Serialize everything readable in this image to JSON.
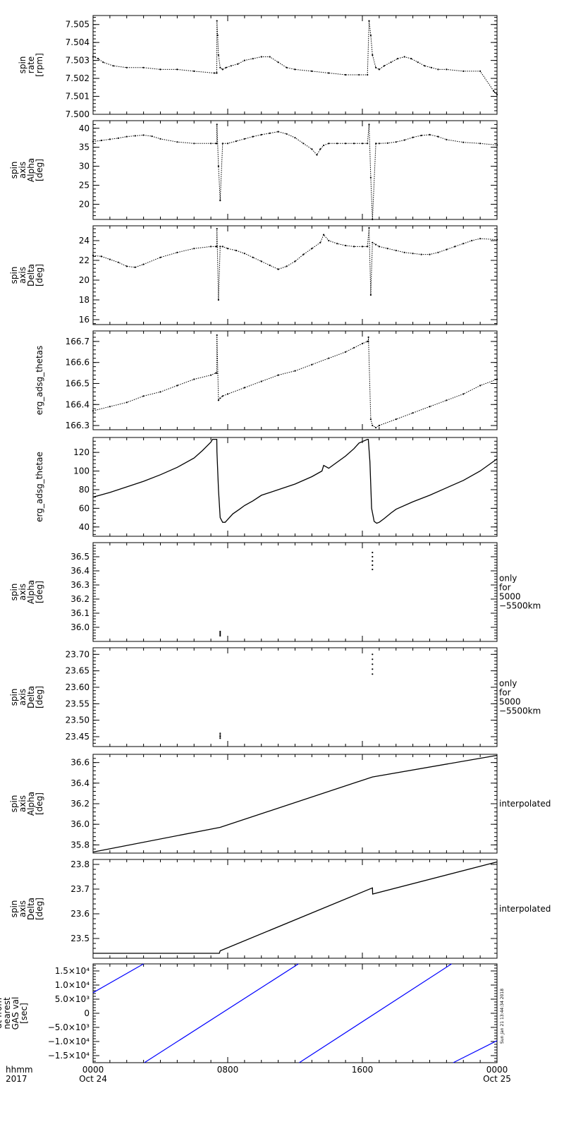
{
  "time_axis": {
    "row1": [
      "0000",
      "0800",
      "1600",
      "0000"
    ],
    "row2": [
      "Oct 24",
      "",
      "",
      "Oct 25"
    ],
    "label_line1": "hhmm",
    "label_line2": "2017",
    "range_hours": [
      0,
      24
    ]
  },
  "stamp": "Sun Jan 21 13:44:34 2018",
  "chart_data": [
    {
      "type": "scatter",
      "ylabel": [
        "spin",
        "rate",
        "[rpm]"
      ],
      "ylim": [
        7.5,
        7.5055
      ],
      "yticks": [
        "7.500",
        "7.501",
        "7.502",
        "7.503",
        "7.504",
        "7.505"
      ],
      "ytick_values": [
        7.5,
        7.501,
        7.502,
        7.503,
        7.504,
        7.505
      ],
      "side_note": [],
      "series": [
        {
          "color": "#000000",
          "x": [
            0,
            0.3,
            0.6,
            1.2,
            2,
            3,
            4,
            5,
            6,
            7.2,
            7.35,
            7.36,
            7.4,
            7.45,
            7.55,
            7.7,
            7.9,
            8.2,
            8.6,
            9,
            9.5,
            10,
            10.5,
            11,
            11.5,
            12,
            13,
            14,
            15,
            15.8,
            16.3,
            16.4,
            16.5,
            16.6,
            16.8,
            17,
            17.3,
            17.7,
            18.1,
            18.5,
            18.9,
            19.3,
            19.7,
            20.1,
            20.5,
            21,
            22,
            23,
            23.8,
            24
          ],
          "y": [
            7.5032,
            7.5031,
            7.5029,
            7.5027,
            7.5026,
            7.5026,
            7.5025,
            7.5025,
            7.5024,
            7.5023,
            7.5023,
            7.5052,
            7.5044,
            7.5033,
            7.5026,
            7.5025,
            7.5026,
            7.5027,
            7.5028,
            7.503,
            7.5031,
            7.5032,
            7.5032,
            7.5029,
            7.5026,
            7.5025,
            7.5024,
            7.5023,
            7.5022,
            7.5022,
            7.5022,
            7.5052,
            7.5044,
            7.5033,
            7.5026,
            7.5025,
            7.5027,
            7.5029,
            7.5031,
            7.5032,
            7.5031,
            7.5029,
            7.5027,
            7.5026,
            7.5025,
            7.5025,
            7.5024,
            7.5024,
            7.5013,
            7.5011
          ]
        }
      ]
    },
    {
      "type": "scatter",
      "ylabel": [
        "spin",
        "axis",
        "Alpha",
        "[deg]"
      ],
      "ylim": [
        16,
        42
      ],
      "yticks": [
        "20",
        "25",
        "30",
        "35",
        "40"
      ],
      "ytick_values": [
        20,
        25,
        30,
        35,
        40
      ],
      "side_note": [],
      "series": [
        {
          "color": "#000000",
          "x": [
            0,
            0.5,
            1,
            1.5,
            2,
            2.5,
            3,
            3.5,
            4,
            5,
            6,
            7,
            7.3,
            7.35,
            7.36,
            7.45,
            7.55,
            7.7,
            8,
            8.5,
            9,
            9.5,
            10,
            10.5,
            11,
            11.5,
            12,
            12.5,
            13,
            13.3,
            13.5,
            13.7,
            14,
            14.5,
            15,
            15.5,
            16,
            16.3,
            16.4,
            16.5,
            16.6,
            16.8,
            17,
            17.5,
            18,
            18.5,
            19,
            19.5,
            20,
            20.5,
            21,
            22,
            23,
            24
          ],
          "y": [
            36.5,
            36.8,
            37.1,
            37.4,
            37.8,
            38,
            38.2,
            37.9,
            37.2,
            36.4,
            36,
            36,
            36,
            36,
            41,
            30,
            21,
            36,
            36,
            36.6,
            37.2,
            37.8,
            38.3,
            38.7,
            39.1,
            38.5,
            37.5,
            36,
            34.5,
            33,
            34.5,
            35.5,
            36,
            36,
            36,
            36,
            36,
            36,
            41,
            27,
            16,
            36,
            36,
            36.1,
            36.4,
            36.9,
            37.6,
            38.1,
            38.3,
            37.8,
            37,
            36.3,
            36,
            35.6
          ]
        }
      ]
    },
    {
      "type": "scatter",
      "ylabel": [
        "spin",
        "axis",
        "Delta",
        "[deg]"
      ],
      "ylim": [
        15.5,
        25.5
      ],
      "yticks": [
        "16",
        "18",
        "20",
        "22",
        "24"
      ],
      "ytick_values": [
        16,
        18,
        20,
        22,
        24
      ],
      "side_note": [],
      "series": [
        {
          "color": "#000000",
          "x": [
            0,
            0.5,
            1,
            1.5,
            2,
            2.5,
            3,
            4,
            5,
            6,
            7,
            7.3,
            7.35,
            7.36,
            7.45,
            7.55,
            7.7,
            8,
            8.5,
            9,
            9.5,
            10,
            10.5,
            11,
            11.5,
            12,
            12.5,
            13,
            13.5,
            13.7,
            14,
            14.5,
            15,
            15.5,
            16,
            16.3,
            16.4,
            16.5,
            16.6,
            16.8,
            17,
            17.5,
            18,
            18.5,
            19,
            19.5,
            20,
            20.5,
            21,
            21.5,
            22,
            22.5,
            23,
            24
          ],
          "y": [
            22.5,
            22.4,
            22.1,
            21.8,
            21.4,
            21.3,
            21.6,
            22.3,
            22.8,
            23.2,
            23.4,
            23.4,
            23.4,
            25.2,
            18,
            23.4,
            23.4,
            23.2,
            23,
            22.7,
            22.3,
            21.9,
            21.5,
            21.1,
            21.4,
            21.9,
            22.6,
            23.2,
            23.8,
            24.6,
            24,
            23.7,
            23.5,
            23.4,
            23.4,
            23.4,
            25.3,
            18.5,
            23.8,
            23.6,
            23.4,
            23.2,
            23,
            22.8,
            22.7,
            22.6,
            22.6,
            22.8,
            23.1,
            23.4,
            23.7,
            24,
            24.2,
            24.1
          ]
        }
      ]
    },
    {
      "type": "scatter",
      "ylabel": [
        "erg_adsg_thetas"
      ],
      "ylim": [
        166.28,
        166.75
      ],
      "yticks": [
        "166.3",
        "166.4",
        "166.5",
        "166.6",
        "166.7"
      ],
      "ytick_values": [
        166.3,
        166.4,
        166.5,
        166.6,
        166.7
      ],
      "side_note": [],
      "series": [
        {
          "color": "#000000",
          "x": [
            0,
            1,
            2,
            3,
            4,
            5,
            6,
            7,
            7.3,
            7.35,
            7.36,
            7.45,
            7.55,
            7.7,
            8,
            9,
            10,
            11,
            12,
            13,
            14,
            15,
            15.5,
            16,
            16.3,
            16.35,
            16.36,
            16.5,
            16.6,
            16.8,
            17,
            18,
            19,
            20,
            21,
            22,
            23,
            24
          ],
          "y": [
            166.37,
            166.39,
            166.41,
            166.44,
            166.46,
            166.49,
            166.52,
            166.54,
            166.55,
            166.55,
            166.73,
            166.42,
            166.43,
            166.44,
            166.45,
            166.48,
            166.51,
            166.54,
            166.56,
            166.59,
            166.62,
            166.65,
            166.67,
            166.69,
            166.7,
            166.7,
            166.72,
            166.33,
            166.3,
            166.29,
            166.3,
            166.33,
            166.36,
            166.39,
            166.42,
            166.45,
            166.49,
            166.52
          ]
        }
      ]
    },
    {
      "type": "line",
      "ylabel": [
        "erg_adsg_thetae"
      ],
      "ylim": [
        30,
        136
      ],
      "yticks": [
        "40",
        "60",
        "80",
        "100",
        "120"
      ],
      "ytick_values": [
        40,
        60,
        80,
        100,
        120
      ],
      "side_note": [],
      "series": [
        {
          "color": "#000000",
          "x": [
            0,
            1,
            2,
            3,
            4,
            5,
            6,
            6.5,
            7,
            7.1,
            7.35,
            7.36,
            7.45,
            7.55,
            7.7,
            7.85,
            8,
            8.3,
            8.7,
            9,
            9.5,
            10,
            11,
            12,
            13,
            13.6,
            13.7,
            14,
            15,
            15.5,
            15.8,
            16.3,
            16.35,
            16.45,
            16.55,
            16.7,
            16.85,
            17,
            17.3,
            17.7,
            18,
            19,
            20,
            21,
            22,
            23,
            24
          ],
          "y": [
            72,
            77,
            83,
            89,
            96,
            104,
            114,
            122,
            131,
            134,
            134,
            121,
            80,
            50,
            45,
            45,
            48,
            54,
            59,
            63,
            68,
            74,
            80,
            86,
            94,
            100,
            106,
            103,
            116,
            124,
            130,
            134,
            134,
            110,
            60,
            46,
            44,
            45,
            49,
            55,
            59,
            67,
            74,
            82,
            90,
            100,
            113
          ]
        }
      ]
    },
    {
      "type": "scatter",
      "ylabel": [
        "spin",
        "axis",
        "Alpha",
        "[deg]"
      ],
      "ylim": [
        35.9,
        36.6
      ],
      "yticks": [
        "36.0",
        "36.1",
        "36.2",
        "36.3",
        "36.4",
        "36.5"
      ],
      "ytick_values": [
        36.0,
        36.1,
        36.2,
        36.3,
        36.4,
        36.5
      ],
      "side_note": [
        "only",
        "for",
        "5000",
        "−5500km"
      ],
      "series": [
        {
          "color": "#000000",
          "x": [
            7.55,
            7.55,
            7.55,
            7.55,
            16.6,
            16.6,
            16.6,
            16.6,
            16.6
          ],
          "y": [
            35.94,
            35.95,
            35.96,
            35.97,
            36.41,
            36.44,
            36.47,
            36.5,
            36.53
          ]
        }
      ]
    },
    {
      "type": "scatter",
      "ylabel": [
        "spin",
        "axis",
        "Delta",
        "[deg]"
      ],
      "ylim": [
        23.42,
        23.72
      ],
      "yticks": [
        "23.45",
        "23.50",
        "23.55",
        "23.60",
        "23.65",
        "23.70"
      ],
      "ytick_values": [
        23.45,
        23.5,
        23.55,
        23.6,
        23.65,
        23.7
      ],
      "side_note": [
        "only",
        "for",
        "5000",
        "−5500km"
      ],
      "series": [
        {
          "color": "#000000",
          "x": [
            7.55,
            7.55,
            7.55,
            7.55,
            16.6,
            16.6,
            16.6,
            16.6,
            16.6
          ],
          "y": [
            23.445,
            23.45,
            23.455,
            23.46,
            23.64,
            23.655,
            23.67,
            23.685,
            23.7
          ]
        }
      ]
    },
    {
      "type": "line",
      "ylabel": [
        "spin",
        "axis",
        "Alpha",
        "[deg]"
      ],
      "ylim": [
        35.72,
        36.68
      ],
      "yticks": [
        "35.8",
        "36.0",
        "36.2",
        "36.4",
        "36.6"
      ],
      "ytick_values": [
        35.8,
        36.0,
        36.2,
        36.4,
        36.6
      ],
      "side_note": [
        "interpolated"
      ],
      "series": [
        {
          "color": "#000000",
          "x": [
            0,
            7.55,
            16.6,
            24
          ],
          "y": [
            35.73,
            35.97,
            36.46,
            36.67
          ]
        }
      ]
    },
    {
      "type": "line",
      "ylabel": [
        "spin",
        "axis",
        "Delta",
        "[deg]"
      ],
      "ylim": [
        23.42,
        23.82
      ],
      "yticks": [
        "23.5",
        "23.6",
        "23.7",
        "23.8"
      ],
      "ytick_values": [
        23.5,
        23.6,
        23.7,
        23.8
      ],
      "side_note": [
        "interpolated"
      ],
      "series": [
        {
          "color": "#000000",
          "x": [
            0,
            7.5,
            7.55,
            16.6,
            16.61,
            24
          ],
          "y": [
            23.44,
            23.44,
            23.45,
            23.705,
            23.68,
            23.81
          ]
        }
      ]
    },
    {
      "type": "line",
      "ylabel": [
        "dt from",
        "nearest",
        "GAS val",
        "[sec]"
      ],
      "ylim": [
        -17500,
        17500
      ],
      "yticks": [
        "−1.5×10⁴",
        "−1.0×10⁴",
        "−5.0×10³",
        "0",
        "5.0×10³",
        "1.0×10⁴",
        "1.5×10⁴"
      ],
      "ytick_values": [
        -15000,
        -10000,
        -5000,
        0,
        5000,
        10000,
        15000
      ],
      "side_note": [],
      "series": [
        {
          "color": "#0000ff",
          "segments": [
            {
              "x": [
                0,
                3.0
              ],
              "y": [
                7300,
                17500
              ]
            },
            {
              "x": [
                3.05,
                12.2
              ],
              "y": [
                -17500,
                17500
              ]
            },
            {
              "x": [
                12.25,
                21.3
              ],
              "y": [
                -17500,
                17500
              ]
            },
            {
              "x": [
                21.4,
                24
              ],
              "y": [
                -17500,
                -9700
              ]
            }
          ]
        }
      ]
    }
  ]
}
